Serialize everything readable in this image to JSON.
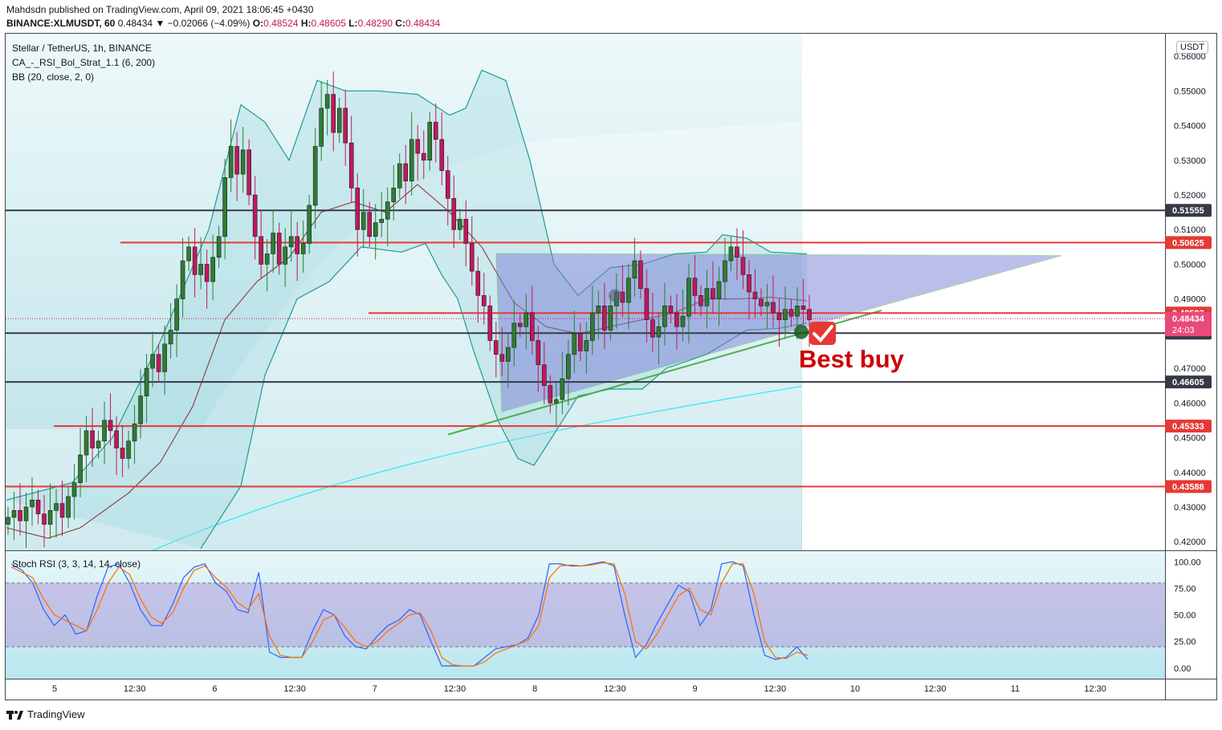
{
  "header": {
    "published": "Mahdsdn published on TradingView.com, April 09, 2021 18:06:45 +0430",
    "symbol_line": "BINANCE:XLMUSDT, 60",
    "price": "0.48434",
    "change": "▼ −0.02066 (−4.09%)",
    "ohlc": {
      "O": "0.48524",
      "H": "0.48605",
      "L": "0.48290",
      "C": "0.48434"
    }
  },
  "legend": {
    "title": "Stellar / TetherUS, 1h, BINANCE",
    "indicator1": "CA_-_RSI_Bol_Strat_1.1 (6, 200)",
    "indicator2": "BB (20, close, 2, 0)",
    "stoch_title": "Stoch RSI (3, 3, 14, 14, close)",
    "currency_badge": "USDT"
  },
  "annotation": {
    "text": "Best buy",
    "color": "#cc0000"
  },
  "countdown": "24:03",
  "footer": {
    "brand": "TradingView"
  },
  "colors": {
    "up": "#2e7d32",
    "down": "#c2185b",
    "level_red": "#e53935",
    "level_black": "#363a45",
    "triangle_fill": "#7b7fd6",
    "trend_green": "#4caf50",
    "bb_line": "#1e9c8c",
    "stoch_k": "#2962ff",
    "stoch_d": "#ff6d00",
    "stoch_band": "#b39ddb",
    "price_badge": "#e84a79"
  },
  "chart_data": [
    {
      "type": "candlestick",
      "symbol": "XLMUSDT",
      "ylim": [
        0.4175,
        0.5665
      ],
      "y_ticks": [
        "0.56000",
        "0.55000",
        "0.54000",
        "0.53000",
        "0.52000",
        "0.51000",
        "0.50000",
        "0.49000",
        "0.47000",
        "0.46000",
        "0.45000",
        "0.44000",
        "0.43000",
        "0.42000"
      ],
      "x_ticks": [
        "5",
        "12:30",
        "6",
        "12:30",
        "7",
        "12:30",
        "8",
        "12:30",
        "9",
        "12:30",
        "10",
        "12:30",
        "11",
        "12:30"
      ],
      "levels": [
        {
          "value": 0.51555,
          "label": "0.51555",
          "style": "black"
        },
        {
          "value": 0.50625,
          "label": "0.50625",
          "style": "red"
        },
        {
          "value": 0.48593,
          "label": "0.48593",
          "style": "red"
        },
        {
          "value": 0.48015,
          "label": "0.48015",
          "style": "black"
        },
        {
          "value": 0.46605,
          "label": "0.46605",
          "style": "black"
        },
        {
          "value": 0.45333,
          "label": "0.45333",
          "style": "red"
        },
        {
          "value": 0.43588,
          "label": "0.43588",
          "style": "red"
        }
      ],
      "last_price": {
        "value": 0.48434,
        "label": "0.48434"
      },
      "close_series": [
        0.427,
        0.429,
        0.426,
        0.43,
        0.432,
        0.428,
        0.425,
        0.429,
        0.431,
        0.427,
        0.433,
        0.437,
        0.445,
        0.452,
        0.447,
        0.449,
        0.455,
        0.452,
        0.447,
        0.444,
        0.449,
        0.454,
        0.462,
        0.47,
        0.474,
        0.469,
        0.477,
        0.481,
        0.49,
        0.501,
        0.505,
        0.497,
        0.5,
        0.495,
        0.502,
        0.508,
        0.525,
        0.534,
        0.526,
        0.533,
        0.52,
        0.508,
        0.5,
        0.503,
        0.509,
        0.5,
        0.505,
        0.508,
        0.503,
        0.506,
        0.517,
        0.534,
        0.545,
        0.549,
        0.538,
        0.545,
        0.535,
        0.522,
        0.51,
        0.515,
        0.508,
        0.512,
        0.513,
        0.518,
        0.522,
        0.529,
        0.524,
        0.536,
        0.532,
        0.53,
        0.541,
        0.536,
        0.527,
        0.519,
        0.51,
        0.513,
        0.506,
        0.498,
        0.491,
        0.488,
        0.478,
        0.474,
        0.472,
        0.476,
        0.483,
        0.482,
        0.486,
        0.478,
        0.471,
        0.465,
        0.46,
        0.461,
        0.467,
        0.474,
        0.48,
        0.475,
        0.478,
        0.486,
        0.488,
        0.481,
        0.488,
        0.492,
        0.489,
        0.496,
        0.501,
        0.493,
        0.484,
        0.479,
        0.482,
        0.488,
        0.486,
        0.482,
        0.485,
        0.496,
        0.491,
        0.488,
        0.493,
        0.49,
        0.495,
        0.501,
        0.505,
        0.502,
        0.497,
        0.492,
        0.49,
        0.488,
        0.489,
        0.486,
        0.484,
        0.487,
        0.485,
        0.488,
        0.487,
        0.484
      ],
      "high_series_note": "wicks approximated",
      "series": [
        {
          "name": "BB upper"
        },
        {
          "name": "BB basis"
        },
        {
          "name": "BB lower"
        }
      ]
    },
    {
      "type": "line",
      "title": "Stoch RSI (3, 3, 14, 14, close)",
      "ylim": [
        -10,
        110
      ],
      "y_ticks": [
        "100.00",
        "75.00",
        "50.00",
        "25.00",
        "0.00"
      ],
      "bands": [
        20,
        80
      ],
      "series": [
        {
          "name": "K",
          "values": [
            98,
            92,
            80,
            55,
            40,
            50,
            32,
            35,
            68,
            95,
            98,
            80,
            55,
            40,
            40,
            60,
            85,
            95,
            98,
            80,
            72,
            55,
            52,
            90,
            15,
            10,
            10,
            10,
            35,
            55,
            50,
            30,
            20,
            18,
            30,
            40,
            45,
            55,
            50,
            25,
            2,
            2,
            2,
            2,
            10,
            18,
            20,
            22,
            28,
            50,
            98,
            98,
            96,
            96,
            98,
            100,
            96,
            50,
            10,
            22,
            42,
            60,
            78,
            72,
            40,
            55,
            98,
            100,
            96,
            50,
            12,
            8,
            10,
            20,
            8
          ]
        },
        {
          "name": "D",
          "values": [
            95,
            90,
            85,
            65,
            50,
            45,
            40,
            35,
            55,
            80,
            95,
            88,
            65,
            48,
            42,
            52,
            75,
            92,
            96,
            85,
            76,
            62,
            55,
            70,
            30,
            12,
            10,
            10,
            25,
            45,
            50,
            38,
            25,
            20,
            25,
            35,
            42,
            50,
            52,
            35,
            10,
            3,
            2,
            2,
            6,
            14,
            18,
            22,
            26,
            40,
            85,
            96,
            97,
            96,
            97,
            99,
            98,
            70,
            25,
            18,
            32,
            50,
            68,
            75,
            55,
            50,
            80,
            98,
            98,
            70,
            25,
            10,
            9,
            15,
            12
          ]
        }
      ]
    }
  ]
}
